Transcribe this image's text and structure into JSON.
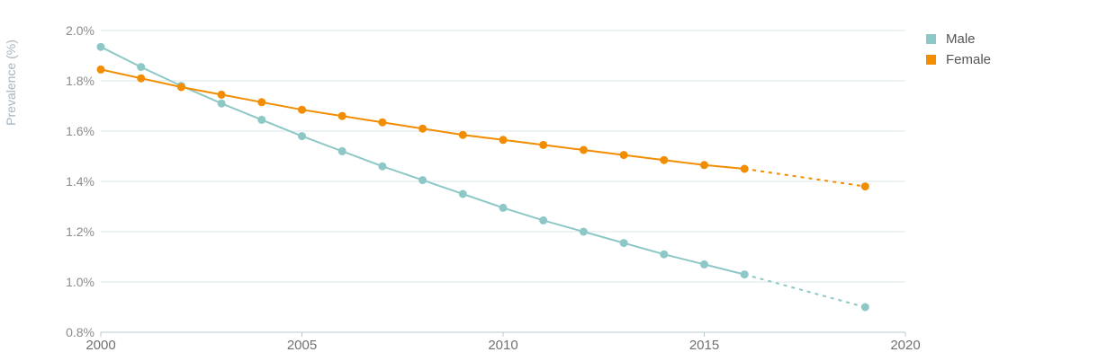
{
  "chart_data": {
    "type": "line",
    "title": "",
    "ylabel": "Prevalence (%)",
    "xlabel": "",
    "xlim": [
      2000,
      2020
    ],
    "ylim": [
      0.8,
      2.0
    ],
    "x_ticks": [
      2000,
      2005,
      2010,
      2015,
      2020
    ],
    "x_tick_labels": [
      "2000",
      "2005",
      "2010",
      "2015",
      "2020"
    ],
    "y_ticks": [
      0.8,
      1.0,
      1.2,
      1.4,
      1.6,
      1.8,
      2.0
    ],
    "y_tick_labels": [
      "0.8%",
      "1.0%",
      "1.2%",
      "1.4%",
      "1.6%",
      "1.8%",
      "2.0%"
    ],
    "grid": true,
    "legend_position": "top-right",
    "series": [
      {
        "name": "Male",
        "color": "#8dc8c6",
        "x": [
          2000,
          2001,
          2002,
          2003,
          2004,
          2005,
          2006,
          2007,
          2008,
          2009,
          2010,
          2011,
          2012,
          2013,
          2014,
          2015,
          2016
        ],
        "values": [
          1.935,
          1.855,
          1.78,
          1.71,
          1.645,
          1.58,
          1.52,
          1.46,
          1.405,
          1.35,
          1.295,
          1.245,
          1.2,
          1.155,
          1.11,
          1.07,
          1.03
        ],
        "projection": {
          "x": [
            2016,
            2019
          ],
          "values": [
            1.03,
            0.9
          ]
        }
      },
      {
        "name": "Female",
        "color": "#f28c00",
        "x": [
          2000,
          2001,
          2002,
          2003,
          2004,
          2005,
          2006,
          2007,
          2008,
          2009,
          2010,
          2011,
          2012,
          2013,
          2014,
          2015,
          2016
        ],
        "values": [
          1.845,
          1.81,
          1.775,
          1.745,
          1.715,
          1.685,
          1.66,
          1.635,
          1.61,
          1.585,
          1.565,
          1.545,
          1.525,
          1.505,
          1.485,
          1.465,
          1.45
        ],
        "projection": {
          "x": [
            2016,
            2019
          ],
          "values": [
            1.45,
            1.38
          ]
        }
      }
    ]
  }
}
